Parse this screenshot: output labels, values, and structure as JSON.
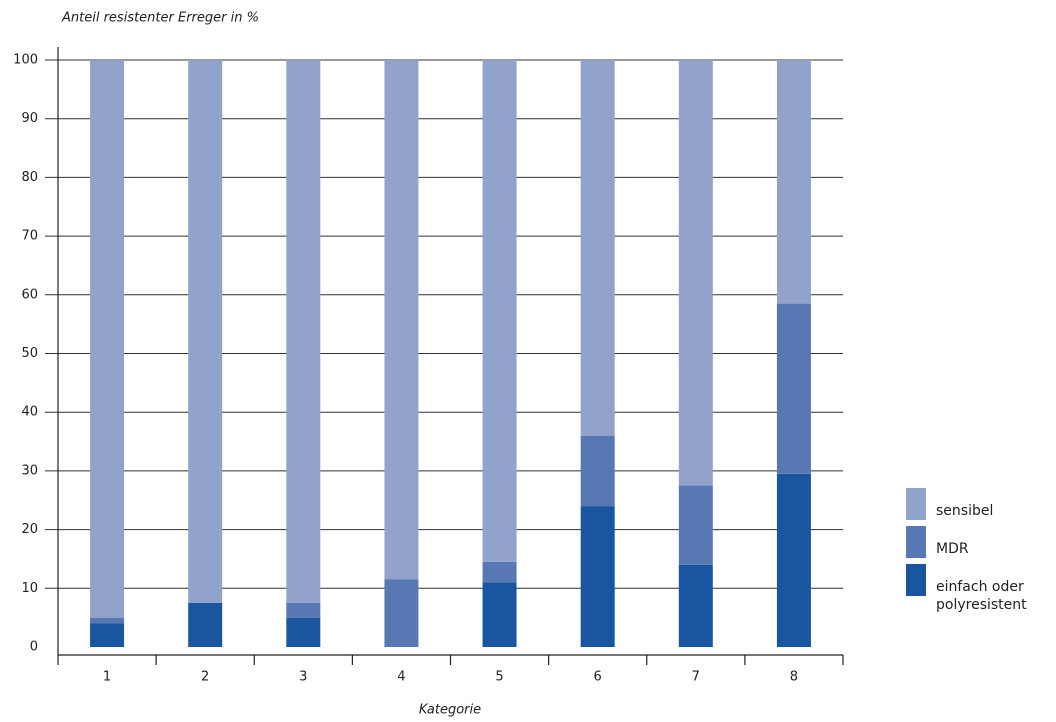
{
  "chart_data": {
    "type": "stacked-bar",
    "title": "Anteil resistenter Erreger in %",
    "x_label": "Kategorie",
    "categories": [
      "1",
      "2",
      "3",
      "4",
      "5",
      "6",
      "7",
      "8"
    ],
    "series": [
      {
        "name": "einfach oder polyresistent",
        "color": "#1a56a0",
        "values": [
          4,
          7.5,
          5,
          0,
          11,
          24,
          14,
          29.5
        ]
      },
      {
        "name": "MDR",
        "color": "#5878b3",
        "values": [
          1,
          0,
          2.5,
          11.5,
          3.5,
          12,
          13.5,
          29
        ]
      },
      {
        "name": "sensibel",
        "color": "#91a3cb",
        "values": [
          95,
          92.5,
          92.5,
          88.5,
          85.5,
          64,
          72.5,
          41.5
        ]
      }
    ],
    "ylim": [
      0,
      100
    ],
    "yticks": [
      0,
      10,
      20,
      30,
      40,
      50,
      60,
      70,
      80,
      90,
      100
    ],
    "grid": true
  }
}
